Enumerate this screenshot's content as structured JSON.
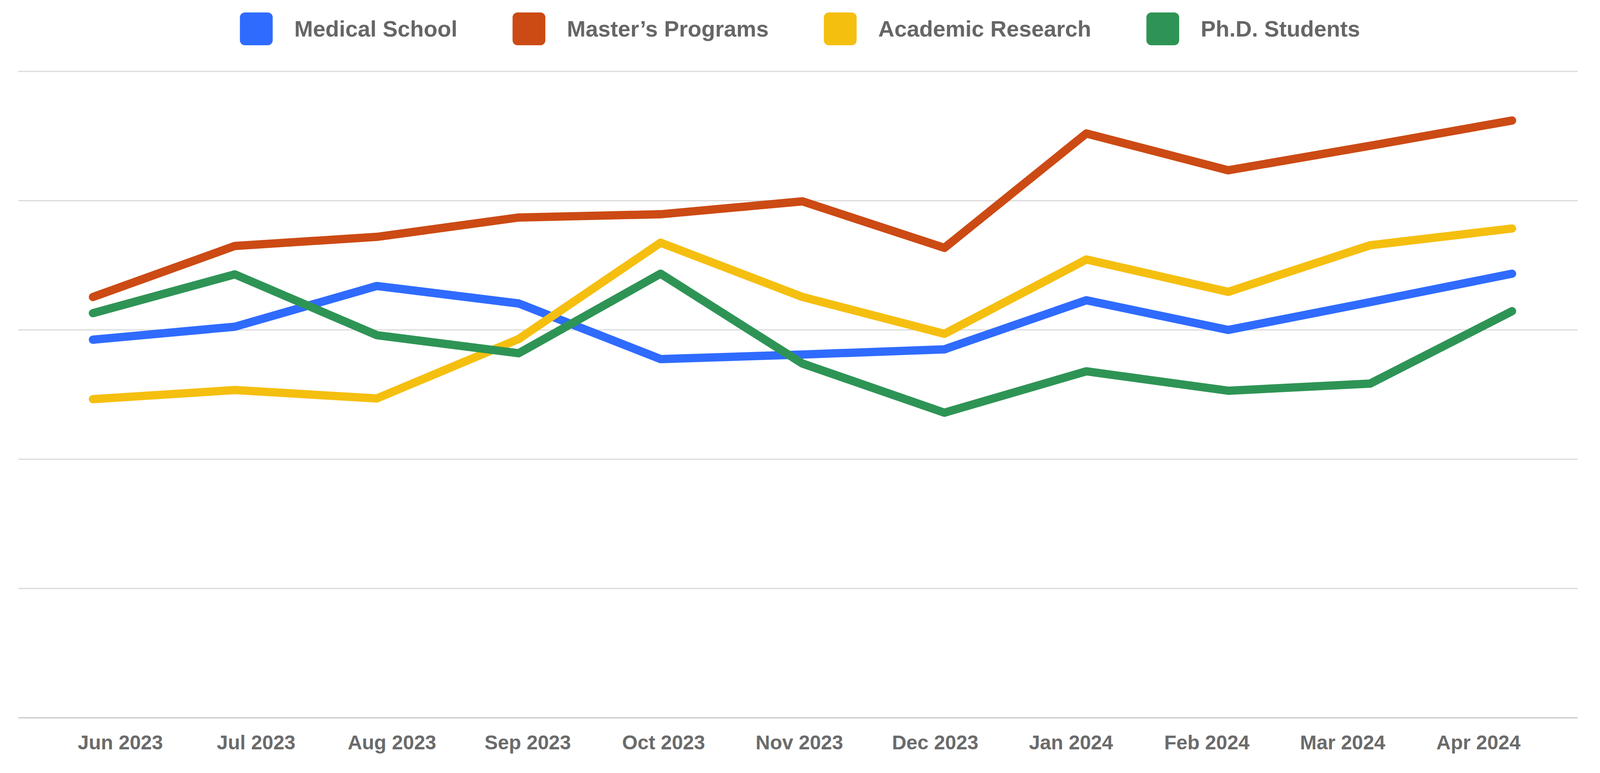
{
  "chart_data": {
    "type": "line",
    "categories": [
      "Jun 2023",
      "Jul 2023",
      "Aug 2023",
      "Sep 2023",
      "Oct 2023",
      "Nov 2023",
      "Dec 2023",
      "Jan 2024",
      "Feb 2024",
      "Mar 2024",
      "Apr 2024"
    ],
    "series": [
      {
        "name": "Medical School",
        "color": "#2f6bff",
        "values": [
          58.5,
          60.5,
          66.8,
          64.1,
          55.5,
          56.2,
          57.0,
          64.6,
          60.0,
          64.3,
          68.7
        ]
      },
      {
        "name": "Master’s Programs",
        "color": "#cc4a14",
        "values": [
          65.1,
          73.0,
          74.4,
          77.4,
          77.9,
          79.9,
          72.7,
          90.4,
          84.7,
          88.5,
          92.4
        ]
      },
      {
        "name": "Academic Research",
        "color": "#f5bf10",
        "values": [
          49.3,
          50.7,
          49.4,
          58.6,
          73.5,
          65.1,
          59.4,
          70.9,
          65.9,
          73.1,
          75.7
        ]
      },
      {
        "name": "Ph.D. Students",
        "color": "#2e9455",
        "values": [
          62.6,
          68.6,
          59.2,
          56.4,
          68.7,
          54.8,
          47.2,
          53.6,
          50.6,
          51.7,
          62.9
        ]
      }
    ],
    "ylim": [
      0,
      100
    ],
    "yticks": [
      0,
      20,
      40,
      60,
      80,
      100
    ],
    "grid": true,
    "legend": "top",
    "tick_labels": "x"
  }
}
